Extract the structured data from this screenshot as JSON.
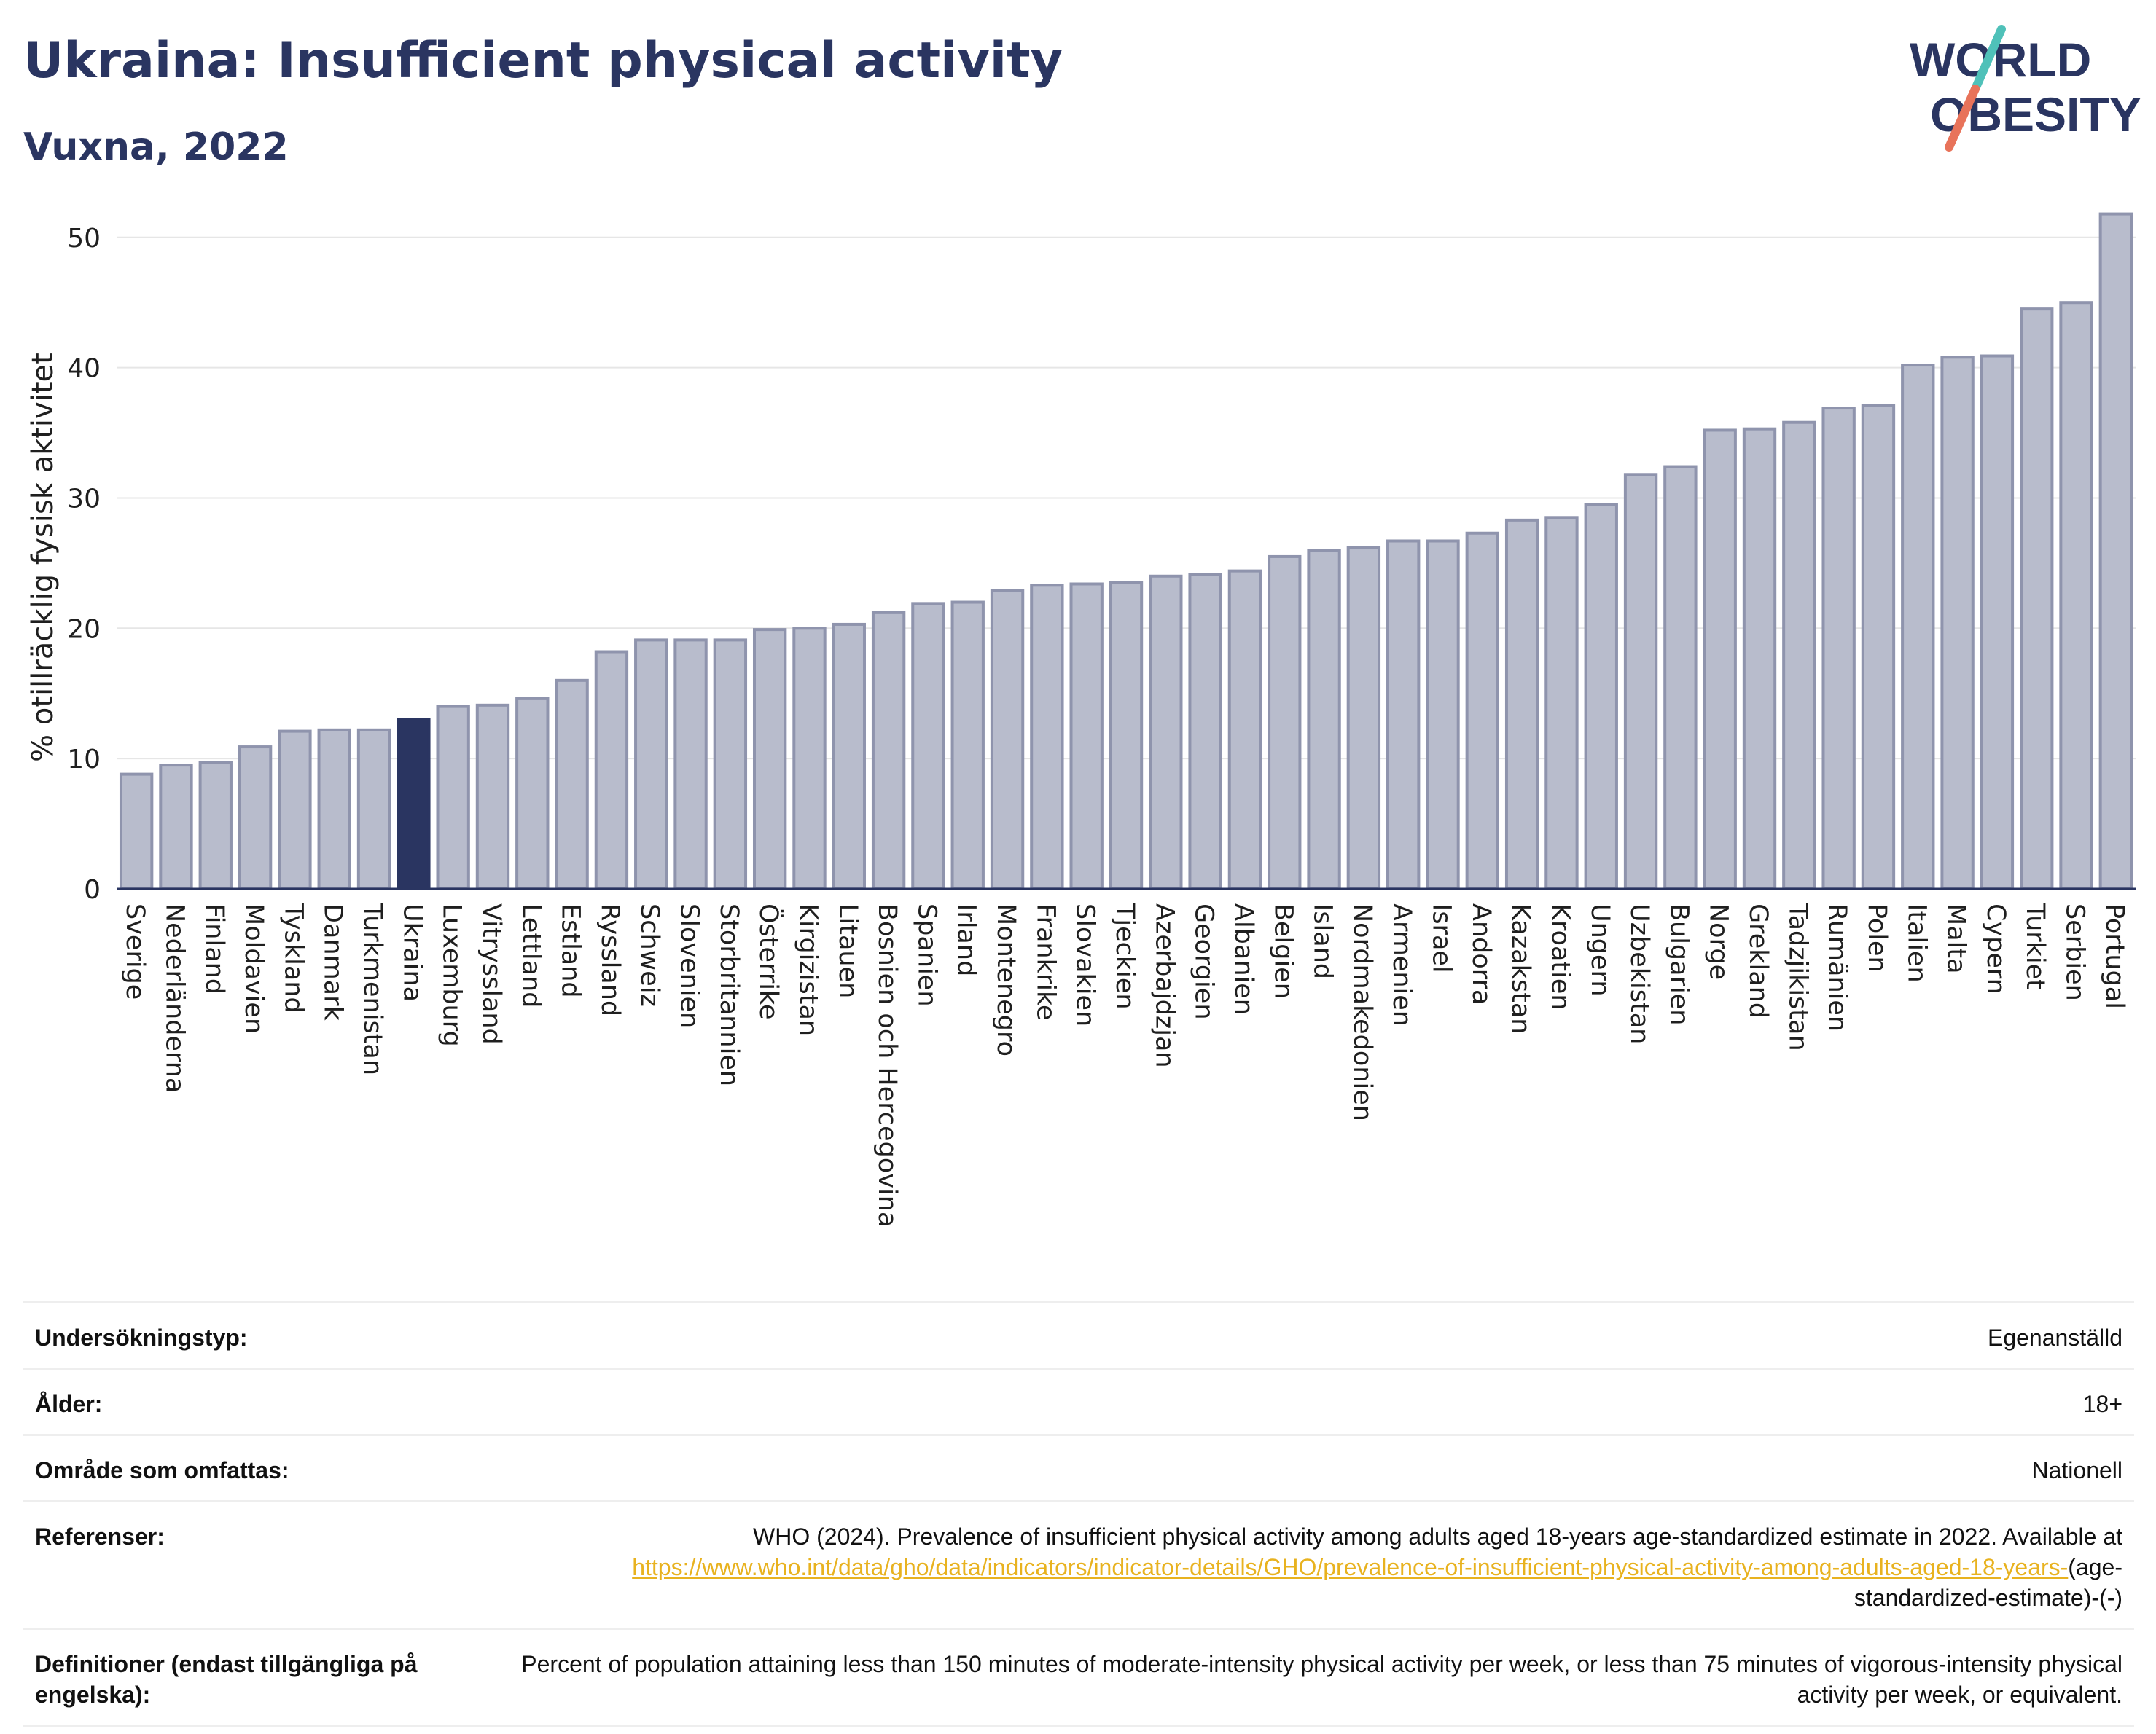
{
  "header": {
    "title": "Ukraina: Insufficient physical activity",
    "subtitle": "Vuxna, 2022"
  },
  "logo": {
    "line1": "WORLD",
    "line2": "OBESITY",
    "accent_colors": [
      "#4fc1b9",
      "#e8735a"
    ]
  },
  "colors": {
    "bar": "#b8bccc",
    "bar_outline": "#8f94ad",
    "highlight": "#2a3561",
    "grid": "#e6e6e6",
    "text": "#1f1f1f",
    "link": "#e8b21f"
  },
  "chart_data": {
    "type": "bar",
    "title": "",
    "xlabel": "",
    "ylabel": "% otillräcklig fysisk aktivitet",
    "ylim": [
      0,
      52
    ],
    "yticks": [
      0,
      10,
      20,
      30,
      40,
      50
    ],
    "grid": true,
    "highlight": "Ukraina",
    "categories": [
      "Sverige",
      "Nederländerna",
      "Finland",
      "Moldavien",
      "Tyskland",
      "Danmark",
      "Turkmenistan",
      "Ukraina",
      "Luxemburg",
      "Vitryssland",
      "Lettland",
      "Estland",
      "Ryssland",
      "Schweiz",
      "Slovenien",
      "Storbritannien",
      "Österrike",
      "Kirgizistan",
      "Litauen",
      "Bosnien och Hercegovina",
      "Spanien",
      "Irland",
      "Montenegro",
      "Frankrike",
      "Slovakien",
      "Tjeckien",
      "Azerbajdzjan",
      "Georgien",
      "Albanien",
      "Belgien",
      "Island",
      "Nordmakedonien",
      "Armenien",
      "Israel",
      "Andorra",
      "Kazakstan",
      "Kroatien",
      "Ungern",
      "Uzbekistan",
      "Bulgarien",
      "Norge",
      "Grekland",
      "Tadzjikistan",
      "Rumänien",
      "Polen",
      "Italien",
      "Malta",
      "Cypern",
      "Turkiet",
      "Serbien",
      "Portugal"
    ],
    "values": [
      8.8,
      9.5,
      9.7,
      10.9,
      12.1,
      12.2,
      12.2,
      13.0,
      14.0,
      14.1,
      14.6,
      16.0,
      18.2,
      19.1,
      19.1,
      19.1,
      19.9,
      20.0,
      20.3,
      21.2,
      21.9,
      22.0,
      22.9,
      23.3,
      23.4,
      23.5,
      24.0,
      24.1,
      24.4,
      25.5,
      26.0,
      26.2,
      26.7,
      26.7,
      27.3,
      28.3,
      28.5,
      29.5,
      31.8,
      32.4,
      35.2,
      35.3,
      35.8,
      36.9,
      37.1,
      40.2,
      40.8,
      40.9,
      44.5,
      45.0,
      51.8
    ]
  },
  "meta": {
    "survey_type_label": "Undersökningstyp:",
    "survey_type_value": "Egenanställd",
    "age_label": "Ålder:",
    "age_value": "18+",
    "area_label": "Område som omfattas:",
    "area_value": "Nationell",
    "references_label": "Referenser:",
    "references_text": "WHO (2024). Prevalence of insufficient physical activity among adults aged 18-years age-standardized estimate in 2022. Available at",
    "references_link": "https://www.who.int/data/gho/data/indicators/indicator-details/GHO/prevalence-of-insufficient-physical-activity-among-adults-aged-18-years-",
    "references_suffix": "(age-standardized-estimate)-(-)",
    "definitions_label": "Definitioner (endast tillgängliga på engelska):",
    "definitions_value": "Percent of population attaining less than 150 minutes of moderate-intensity physical activity per week, or less than 75 minutes of vigorous-intensity physical activity per week, or equivalent."
  }
}
